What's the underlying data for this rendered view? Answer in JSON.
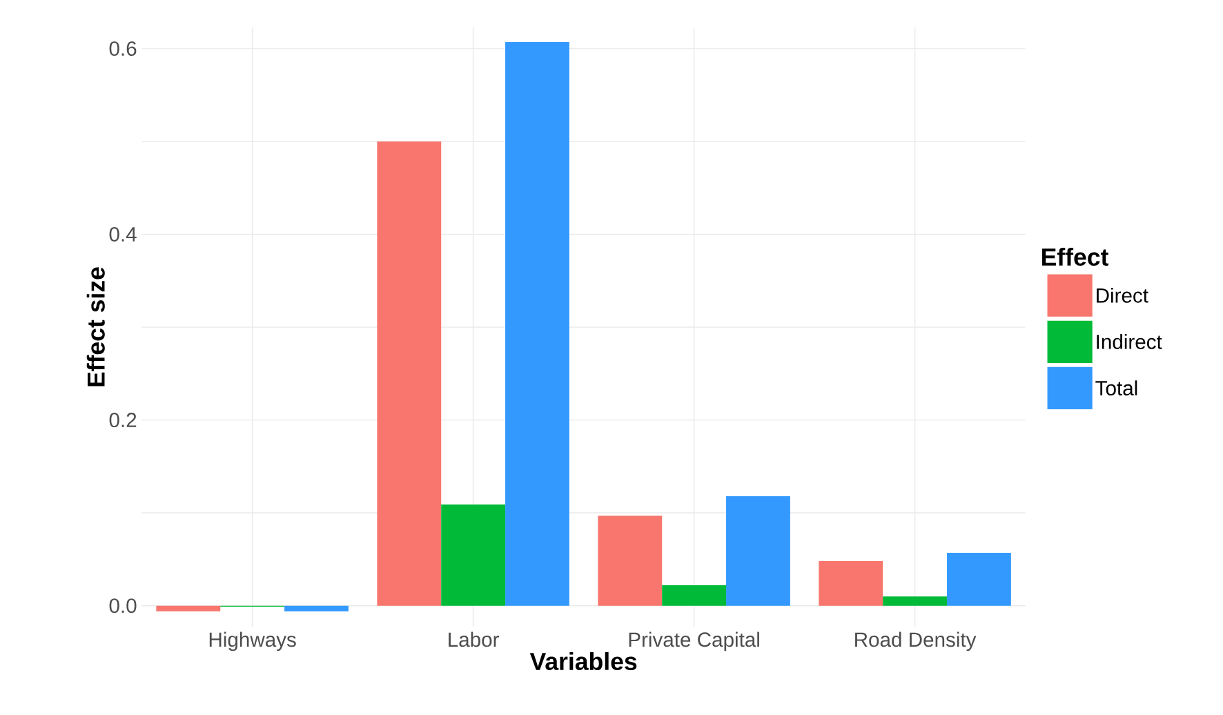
{
  "chart_data": {
    "type": "bar",
    "xlabel": "Variables",
    "ylabel": "Effect size",
    "legend_title": "Effect",
    "categories": [
      "Highways",
      "Labor",
      "Private Capital",
      "Road Density"
    ],
    "series": [
      {
        "name": "Direct",
        "color": "#f8766d",
        "values": [
          -0.006,
          0.5,
          0.097,
          0.048
        ]
      },
      {
        "name": "Indirect",
        "color": "#00ba38",
        "values": [
          -0.001,
          0.109,
          0.022,
          0.01
        ]
      },
      {
        "name": "Total",
        "color": "#3399ff",
        "values": [
          -0.006,
          0.607,
          0.118,
          0.057
        ]
      }
    ],
    "ylim": [
      -0.023,
      0.623
    ],
    "yticks": [
      {
        "value": 0,
        "label": "0.0"
      },
      {
        "value": 0.1,
        "label": null
      },
      0.2,
      {
        "value": 0.3,
        "label": null
      },
      0.4,
      {
        "value": 0.5,
        "label": null
      },
      0.6
    ],
    "grid": true,
    "legend": "right"
  }
}
